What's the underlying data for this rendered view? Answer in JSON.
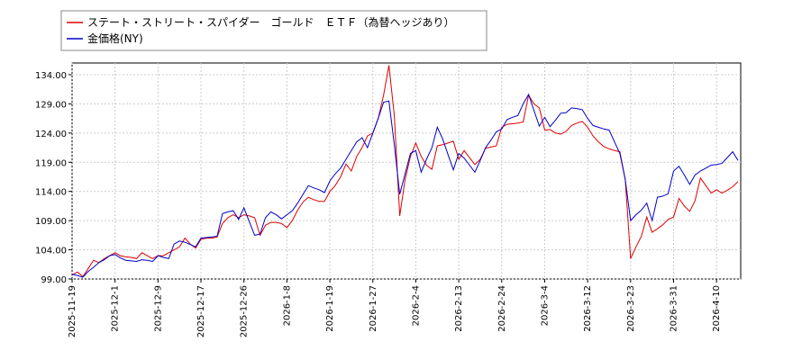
{
  "chart_data": {
    "type": "line",
    "series": [
      {
        "name": "ステート・ストリート・スパイダー　ゴールド　ＥＴＦ（為替ヘッジあり）",
        "color": "#dd0000",
        "values": [
          99.7,
          100.2,
          99.4,
          100.8,
          102.2,
          101.8,
          102.5,
          103.0,
          103.5,
          103.0,
          102.8,
          102.7,
          102.5,
          103.5,
          103.0,
          102.5,
          103.0,
          103.0,
          103.5,
          104.0,
          104.5,
          106.0,
          105.0,
          104.3,
          105.8,
          106.0,
          106.0,
          106.2,
          108.5,
          109.5,
          110.0,
          109.5,
          110.0,
          109.8,
          109.5,
          106.5,
          108.2,
          108.7,
          108.7,
          108.5,
          107.8,
          109.0,
          110.8,
          112.2,
          113.0,
          112.6,
          112.3,
          112.3,
          114.0,
          115.0,
          116.5,
          118.7,
          117.5,
          120.0,
          121.5,
          123.5,
          124.0,
          126.5,
          130.5,
          135.6,
          127.0,
          109.8,
          116.0,
          120.0,
          122.3,
          120.0,
          118.5,
          117.8,
          121.8,
          122.0,
          122.3,
          122.6,
          119.5,
          121.0,
          119.8,
          118.6,
          119.5,
          121.4,
          121.6,
          121.8,
          125.0,
          125.5,
          125.6,
          125.7,
          125.9,
          130.5,
          129.0,
          128.3,
          124.5,
          124.6,
          124.0,
          123.8,
          124.3,
          125.3,
          125.7,
          126.0,
          125.0,
          123.5,
          122.5,
          121.7,
          121.3,
          121.0,
          120.8,
          116.0,
          102.5,
          104.5,
          106.3,
          109.6,
          107.0,
          107.6,
          108.3,
          109.2,
          109.6,
          112.8,
          111.5,
          110.6,
          112.4,
          116.3,
          115.0,
          113.7,
          114.3,
          113.7,
          114.2,
          114.8,
          115.7
        ]
      },
      {
        "name": "金価格(NY)",
        "color": "#0000cc",
        "values": [
          99.8,
          99.6,
          99.3,
          100.3,
          101.0,
          101.8,
          102.3,
          103.0,
          103.2,
          102.6,
          102.2,
          102.1,
          102.0,
          102.3,
          102.2,
          102.0,
          103.0,
          102.7,
          102.5,
          105.0,
          105.5,
          105.3,
          104.9,
          104.5,
          106.0,
          106.1,
          106.2,
          106.3,
          110.2,
          110.5,
          110.7,
          109.2,
          111.2,
          108.8,
          106.5,
          106.7,
          109.5,
          110.5,
          110.0,
          109.3,
          110.0,
          110.7,
          112.0,
          113.5,
          115.0,
          114.6,
          114.3,
          113.8,
          115.8,
          117.0,
          118.0,
          119.5,
          121.0,
          122.5,
          123.2,
          121.5,
          124.0,
          126.5,
          129.3,
          129.5,
          122.0,
          113.5,
          117.0,
          120.5,
          121.0,
          117.3,
          119.5,
          121.5,
          125.0,
          123.0,
          120.3,
          117.7,
          120.5,
          119.7,
          118.5,
          117.3,
          119.3,
          121.5,
          122.8,
          124.2,
          124.7,
          126.3,
          126.7,
          127.0,
          129.0,
          130.6,
          127.9,
          125.2,
          126.7,
          125.1,
          126.2,
          127.4,
          127.5,
          128.3,
          128.2,
          128.0,
          126.5,
          125.3,
          125.0,
          124.7,
          124.5,
          122.5,
          120.5,
          116.0,
          109.0,
          110.0,
          110.8,
          112.0,
          109.0,
          113.0,
          113.2,
          113.6,
          117.5,
          118.3,
          116.8,
          115.2,
          116.8,
          117.5,
          118.0,
          118.5,
          118.6,
          118.8,
          119.8,
          120.8,
          119.3
        ]
      }
    ],
    "categories": [
      "2025-11-19",
      null,
      null,
      null,
      null,
      null,
      null,
      null,
      "2025-12-1",
      null,
      null,
      null,
      null,
      null,
      null,
      null,
      "2025-12-9",
      null,
      null,
      null,
      null,
      null,
      null,
      null,
      "2025-12-17",
      null,
      null,
      null,
      null,
      null,
      null,
      null,
      "2025-12-26",
      null,
      null,
      null,
      null,
      null,
      null,
      null,
      "2026-1-8",
      null,
      null,
      null,
      null,
      null,
      null,
      null,
      "2026-1-19",
      null,
      null,
      null,
      null,
      null,
      null,
      null,
      "2026-1-27",
      null,
      null,
      null,
      null,
      null,
      null,
      null,
      "2026-2-4",
      null,
      null,
      null,
      null,
      null,
      null,
      null,
      "2026-2-13",
      null,
      null,
      null,
      null,
      null,
      null,
      null,
      "2026-2-24",
      null,
      null,
      null,
      null,
      null,
      null,
      null,
      "2026-3-4",
      null,
      null,
      null,
      null,
      null,
      null,
      null,
      "2026-3-12",
      null,
      null,
      null,
      null,
      null,
      null,
      null,
      "2026-3-23",
      null,
      null,
      null,
      null,
      null,
      null,
      null,
      "2026-3-31",
      null,
      null,
      null,
      null,
      null,
      null,
      null,
      "2026-4-10",
      null,
      null,
      null,
      null
    ],
    "ylim": [
      99,
      136
    ],
    "yticks": [
      {
        "value": 99,
        "label": "99.00"
      },
      {
        "value": 104,
        "label": "104.00"
      },
      {
        "value": 109,
        "label": "109.00"
      },
      {
        "value": 114,
        "label": "114.00"
      },
      {
        "value": 119,
        "label": "119.00"
      },
      {
        "value": 124,
        "label": "124.00"
      },
      {
        "value": 129,
        "label": "129.00"
      },
      {
        "value": 134,
        "label": "134.00"
      }
    ],
    "grid": true,
    "legend": "top-left"
  }
}
